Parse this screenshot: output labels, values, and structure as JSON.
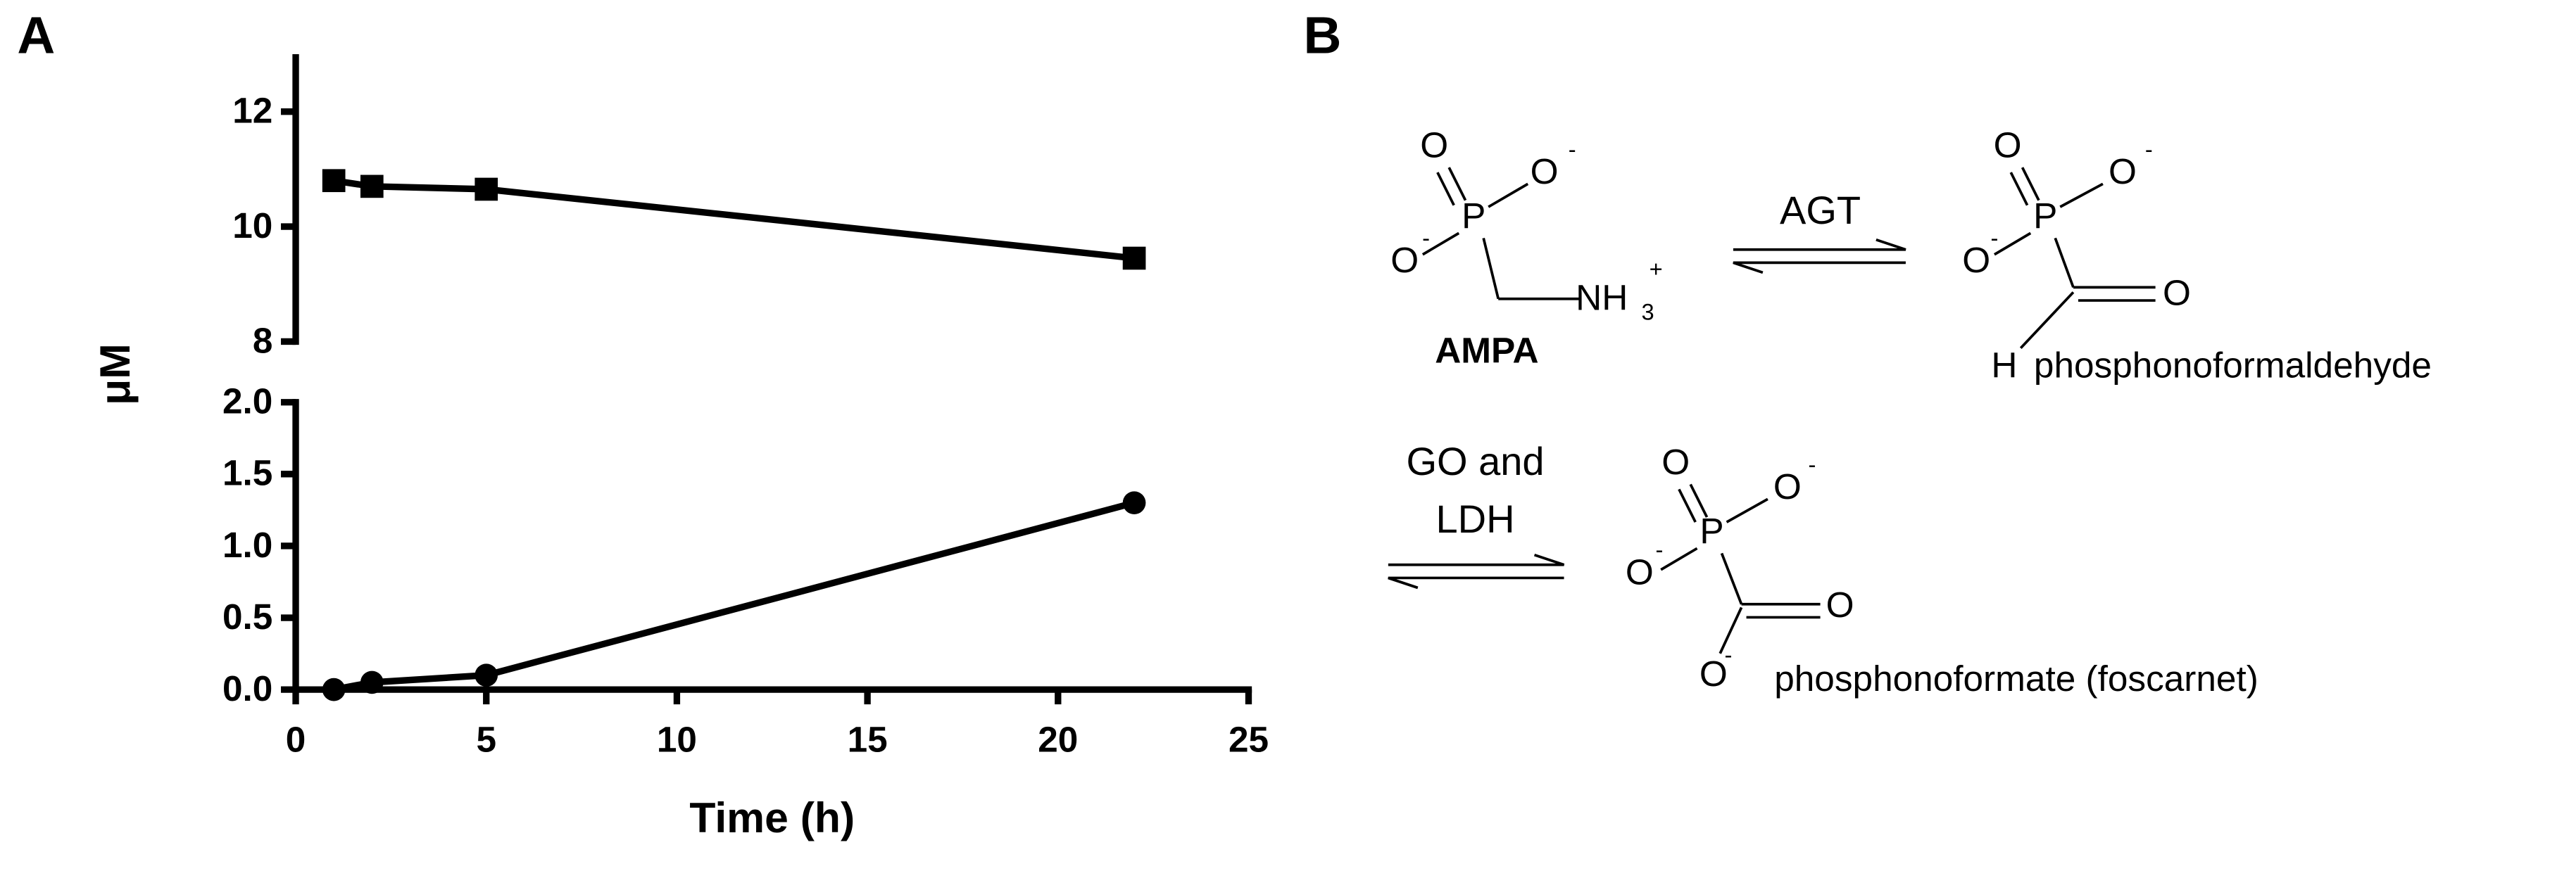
{
  "panel_labels": [
    "A",
    "B"
  ],
  "chart_data": {
    "type": "line",
    "x_label": "Time (h)",
    "y_label": "μM",
    "x": [
      1,
      2,
      5,
      22
    ],
    "xlim": [
      0,
      25
    ],
    "xticks": [
      0,
      5,
      10,
      15,
      20,
      25
    ],
    "ylim": [
      0,
      2
    ],
    "yticks": [
      {
        "value": 0,
        "label": "0.0"
      },
      0.5,
      {
        "value": 1,
        "label": "1.0"
      },
      1.5,
      {
        "value": 2,
        "label": "2.0"
      }
    ],
    "y2lim": [
      8,
      13
    ],
    "y2ticks": [
      8,
      10,
      12
    ],
    "broken_axis": true,
    "grid": false,
    "series": [
      {
        "color": "#000000",
        "marker": "square",
        "axis": "y2",
        "values": [
          10.8,
          10.7,
          10.65,
          9.45
        ]
      },
      {
        "color": "#000000",
        "marker": "circle",
        "values": [
          0,
          0.05,
          0.1,
          1.3
        ]
      }
    ]
  },
  "scheme": {
    "molecules": [
      {
        "labels": [
          "O",
          "O",
          "-",
          "P",
          "O",
          "-",
          "NH",
          "3",
          "+"
        ],
        "name": "AMPA"
      },
      {
        "labels": [
          "O",
          "O",
          "-",
          "P",
          "O",
          "-",
          "O",
          "H"
        ],
        "name": "phosphonoformaldehyde"
      },
      {
        "labels": [
          "O",
          "O",
          "-",
          "P",
          "O",
          "-",
          "O",
          "O",
          "-"
        ],
        "name": "phosphonoformate (foscarnet)"
      }
    ],
    "arrows": [
      {
        "label_lines": [
          "AGT"
        ]
      },
      {
        "label_lines": [
          "GO and",
          "LDH"
        ]
      }
    ]
  }
}
